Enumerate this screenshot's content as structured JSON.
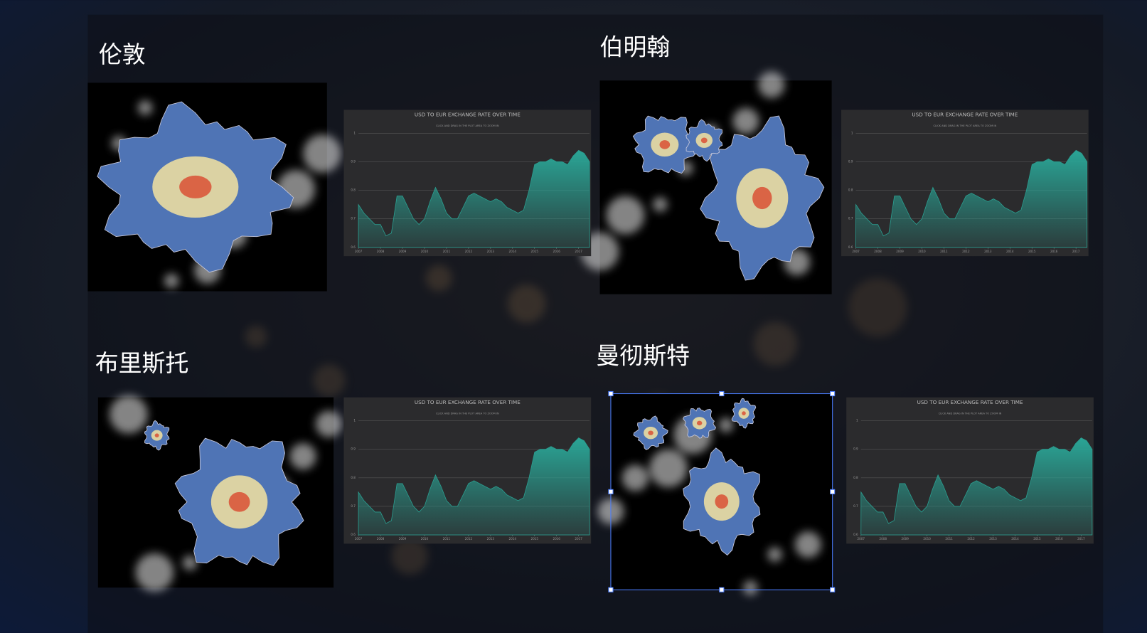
{
  "cities": [
    "伦敦",
    "伯明翰",
    "布里斯托",
    "曼彻斯特"
  ],
  "chart_data": {
    "type": "area",
    "title": "USD TO EUR EXCHANGE RATE OVER TIME",
    "subtitle": "CLICK AND DRAG IN THE PLOT AREA TO ZOOM IN",
    "x": [
      2007,
      2007.25,
      2007.5,
      2007.75,
      2008,
      2008.25,
      2008.5,
      2008.75,
      2009,
      2009.25,
      2009.5,
      2009.75,
      2010,
      2010.25,
      2010.5,
      2010.75,
      2011,
      2011.25,
      2011.5,
      2011.75,
      2012,
      2012.25,
      2012.5,
      2012.75,
      2013,
      2013.25,
      2013.5,
      2013.75,
      2014,
      2014.25,
      2014.5,
      2014.75,
      2015,
      2015.25,
      2015.5,
      2015.75,
      2016,
      2016.25,
      2016.5,
      2016.75,
      2017,
      2017.25,
      2017.5
    ],
    "values": [
      0.75,
      0.72,
      0.7,
      0.68,
      0.68,
      0.64,
      0.65,
      0.78,
      0.78,
      0.74,
      0.7,
      0.68,
      0.7,
      0.76,
      0.81,
      0.77,
      0.72,
      0.7,
      0.7,
      0.74,
      0.78,
      0.79,
      0.78,
      0.77,
      0.76,
      0.77,
      0.76,
      0.74,
      0.73,
      0.72,
      0.73,
      0.8,
      0.89,
      0.9,
      0.9,
      0.91,
      0.9,
      0.9,
      0.89,
      0.92,
      0.94,
      0.93,
      0.9
    ],
    "color": "#2a9d8f",
    "xlim": [
      2007,
      2017.5
    ],
    "xticks": [
      2007,
      2008,
      2009,
      2010,
      2011,
      2012,
      2013,
      2014,
      2015,
      2016,
      2017
    ],
    "ylim": [
      0.6,
      1
    ],
    "yticks": [
      0.6,
      0.7,
      0.8,
      0.9,
      1
    ],
    "grid": true
  }
}
